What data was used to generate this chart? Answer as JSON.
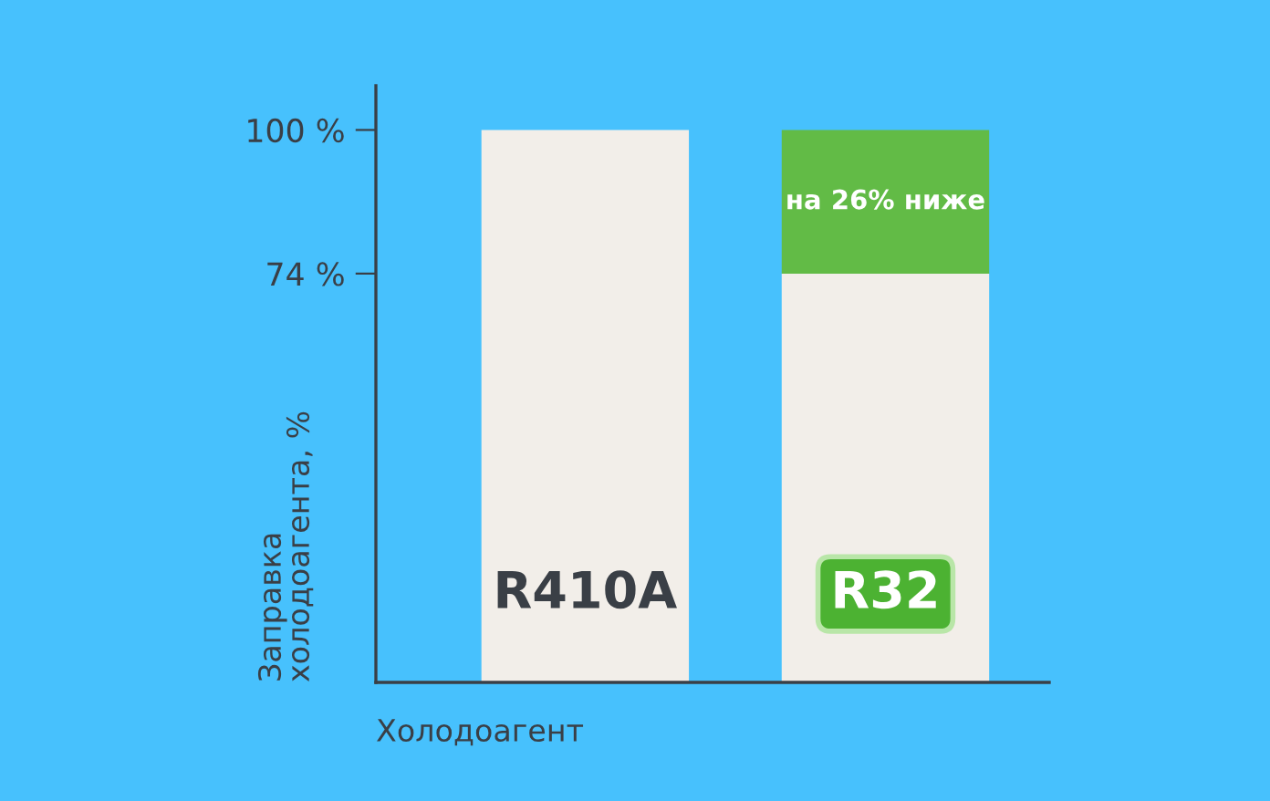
{
  "chart_data": {
    "type": "bar",
    "stacked": true,
    "categories": [
      "R410A",
      "R32"
    ],
    "series": [
      {
        "color": "#f2eee9",
        "values": [
          100,
          74
        ]
      },
      {
        "color": "#62bb46",
        "values": [
          null,
          26
        ]
      }
    ],
    "ylim": [
      0,
      108
    ],
    "yticks": [
      {
        "value": 100,
        "label": "100 %"
      },
      {
        "value": 74,
        "label": "74 %"
      }
    ],
    "xlabel": "Холодоагент",
    "ylabel": "Заправка\nхолодоагента, %",
    "annotations": [
      "на 26% ниже"
    ],
    "grid": false,
    "legend": false
  }
}
